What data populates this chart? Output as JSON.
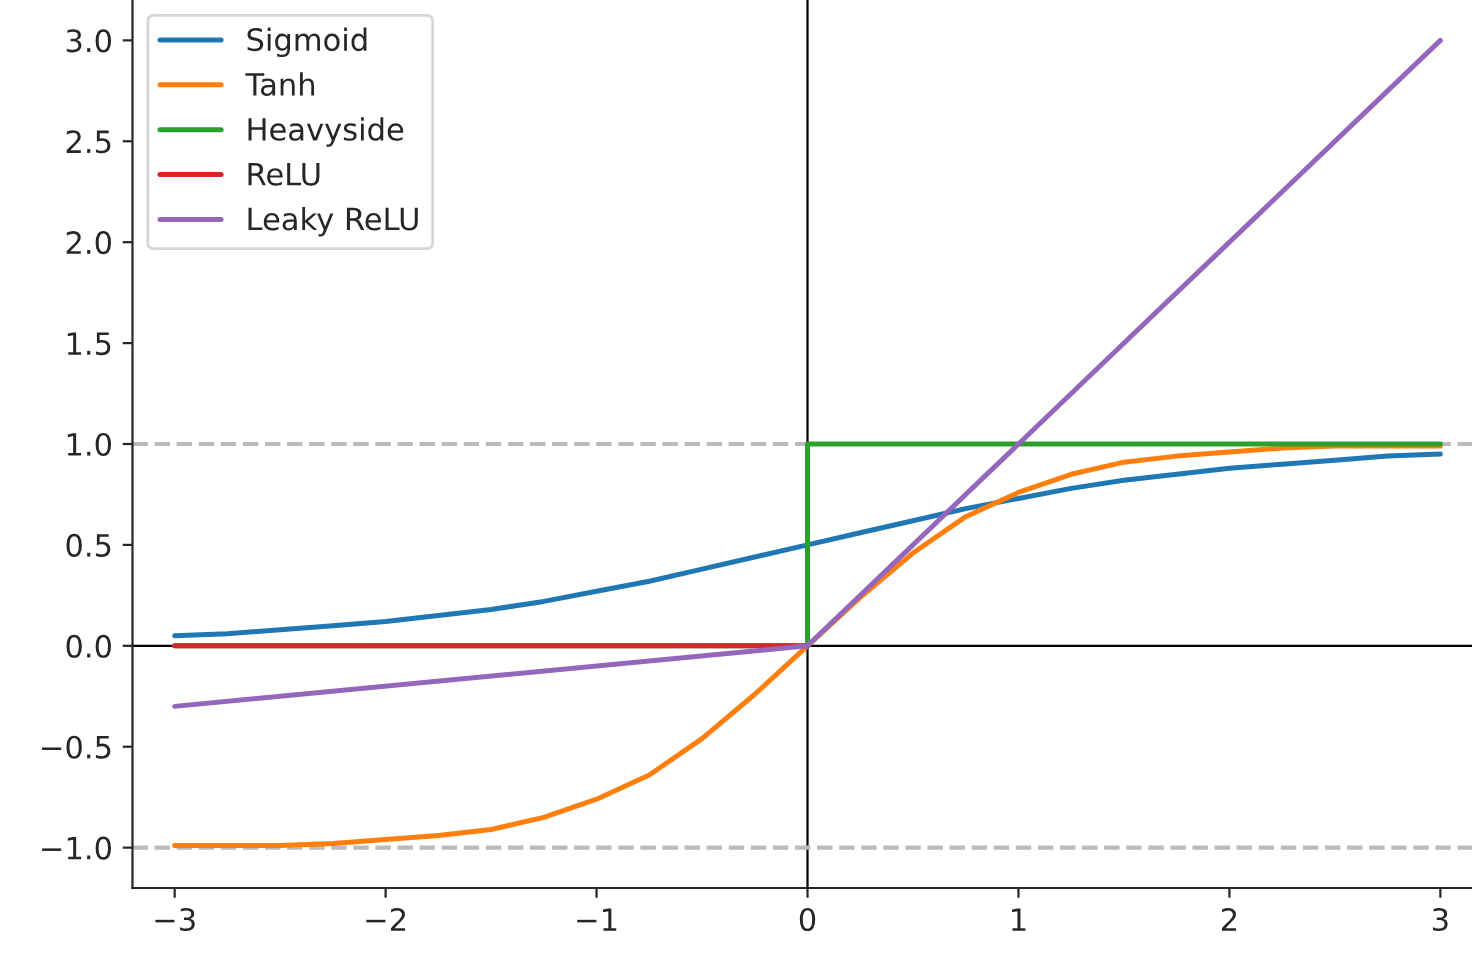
{
  "chart_data": {
    "type": "line",
    "xlim": [
      -3.2,
      3.15
    ],
    "ylim": [
      -1.2,
      3.2
    ],
    "xticks": [
      {
        "value": -3,
        "label": "−3"
      },
      {
        "value": -2,
        "label": "−2"
      },
      {
        "value": -1,
        "label": "−1"
      },
      0,
      1,
      2,
      3
    ],
    "yticks": [
      {
        "value": -1.0,
        "label": "−1.0"
      },
      {
        "value": -0.5,
        "label": "−0.5"
      },
      {
        "value": 0.0,
        "label": "0.0"
      },
      {
        "value": 0.5,
        "label": "0.5"
      },
      {
        "value": 1.0,
        "label": "1.0"
      },
      {
        "value": 1.5,
        "label": "1.5"
      },
      {
        "value": 2.0,
        "label": "2.0"
      },
      {
        "value": 2.5,
        "label": "2.5"
      },
      {
        "value": 3.0,
        "label": "3.0"
      }
    ],
    "grid": false,
    "legend": "top left",
    "line_style": "solid",
    "marker": "none",
    "series": [
      {
        "name": "Sigmoid",
        "color": "#1f77b4",
        "x": [
          -3,
          -2.75,
          -2.5,
          -2.25,
          -2,
          -1.75,
          -1.5,
          -1.25,
          -1,
          -0.75,
          -0.5,
          -0.25,
          0,
          0.25,
          0.5,
          0.75,
          1,
          1.25,
          1.5,
          1.75,
          2,
          2.25,
          2.5,
          2.75,
          3
        ],
        "values": [
          0.05,
          0.06,
          0.08,
          0.1,
          0.12,
          0.15,
          0.18,
          0.22,
          0.27,
          0.32,
          0.38,
          0.44,
          0.5,
          0.56,
          0.62,
          0.68,
          0.73,
          0.78,
          0.82,
          0.85,
          0.88,
          0.9,
          0.92,
          0.94,
          0.95
        ]
      },
      {
        "name": "Tanh",
        "color": "#ff7f0e",
        "x": [
          -3,
          -2.75,
          -2.5,
          -2.25,
          -2,
          -1.75,
          -1.5,
          -1.25,
          -1,
          -0.75,
          -0.5,
          -0.25,
          0,
          0.25,
          0.5,
          0.75,
          1,
          1.25,
          1.5,
          1.75,
          2,
          2.25,
          2.5,
          2.75,
          3
        ],
        "values": [
          -0.99,
          -0.99,
          -0.99,
          -0.98,
          -0.96,
          -0.94,
          -0.91,
          -0.85,
          -0.76,
          -0.64,
          -0.46,
          -0.24,
          0,
          0.24,
          0.46,
          0.64,
          0.76,
          0.85,
          0.91,
          0.94,
          0.96,
          0.98,
          0.99,
          0.99,
          0.99
        ]
      },
      {
        "name": "Heavyside",
        "color": "#2ca02c",
        "x": [
          -3,
          0,
          0,
          3
        ],
        "values": [
          0,
          0,
          1,
          1
        ]
      },
      {
        "name": "ReLU",
        "color": "#d62728",
        "x": [
          -3,
          0
        ],
        "values": [
          0,
          0
        ]
      },
      {
        "name": "Leaky ReLU",
        "color": "#9467bd",
        "x": [
          -3,
          0,
          3
        ],
        "values": [
          -0.3,
          0,
          3
        ]
      }
    ],
    "ref_lines": [
      {
        "axis": "y",
        "value": 0,
        "color": "#000000",
        "line_style": "solid"
      },
      {
        "axis": "x",
        "value": 0,
        "color": "#000000",
        "line_style": "solid"
      },
      {
        "axis": "y",
        "value": 1,
        "color": "#bbbbbb",
        "line_style": "dashed"
      },
      {
        "axis": "y",
        "value": -1,
        "color": "#bbbbbb",
        "line_style": "dashed"
      }
    ]
  }
}
